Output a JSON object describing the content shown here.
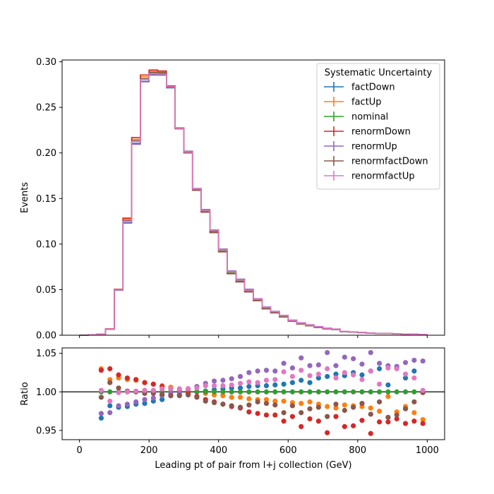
{
  "chart_data": [
    {
      "type": "line",
      "drawstyle": "step",
      "title": "",
      "xlabel": "",
      "ylabel": "Events",
      "xlim": [
        -50,
        1050
      ],
      "ylim": [
        0.0,
        0.302
      ],
      "xticks": [
        0,
        200,
        400,
        600,
        800,
        1000
      ],
      "yticks": [
        0.0,
        0.05,
        0.1,
        0.15,
        0.2,
        0.25,
        0.3
      ],
      "ytick_labels": [
        "0.00",
        "0.05",
        "0.10",
        "0.15",
        "0.20",
        "0.25",
        "0.30"
      ],
      "grid": false,
      "legend": {
        "title": "Systematic Uncertainty",
        "position": "top-right",
        "entries": [
          "factDown",
          "factUp",
          "nominal",
          "renormDown",
          "renormUp",
          "renormfactDown",
          "renormfactUp"
        ]
      },
      "bin_edges": [
        0,
        25,
        50,
        75,
        100,
        125,
        150,
        175,
        200,
        225,
        250,
        275,
        300,
        325,
        350,
        375,
        400,
        425,
        450,
        475,
        500,
        525,
        550,
        575,
        600,
        625,
        650,
        675,
        700,
        725,
        750,
        775,
        800,
        825,
        850,
        875,
        900,
        925,
        950,
        975,
        1000
      ],
      "series": [
        {
          "name": "factDown",
          "color": "#1f77b4",
          "values": [
            0.0,
            0.0005,
            0.001,
            0.0065,
            0.0495,
            0.1235,
            0.2105,
            0.2785,
            0.2855,
            0.2855,
            0.2715,
            0.2265,
            0.2005,
            0.16,
            0.1365,
            0.114,
            0.093,
            0.069,
            0.06,
            0.049,
            0.039,
            0.03,
            0.0255,
            0.021,
            0.016,
            0.013,
            0.011,
            0.009,
            0.0075,
            0.0065,
            0.004,
            0.0035,
            0.003,
            0.0025,
            0.002,
            0.002,
            0.0015,
            0.0012,
            0.001,
            0.0008
          ]
        },
        {
          "name": "factUp",
          "color": "#ff7f0e",
          "values": [
            0.0,
            0.0005,
            0.001,
            0.007,
            0.0502,
            0.1275,
            0.215,
            0.2835,
            0.2895,
            0.289,
            0.2735,
            0.2275,
            0.201,
            0.16,
            0.136,
            0.1135,
            0.0925,
            0.0685,
            0.0595,
            0.0485,
            0.0385,
            0.0295,
            0.0252,
            0.0207,
            0.0158,
            0.0128,
            0.0108,
            0.0088,
            0.0073,
            0.0064,
            0.0039,
            0.0034,
            0.0029,
            0.0024,
            0.0019,
            0.0019,
            0.0015,
            0.0012,
            0.001,
            0.0008
          ]
        },
        {
          "name": "nominal",
          "color": "#2ca02c",
          "values": [
            0.0,
            0.0005,
            0.001,
            0.0068,
            0.05,
            0.1255,
            0.213,
            0.281,
            0.288,
            0.2875,
            0.2725,
            0.227,
            0.201,
            0.16,
            0.1365,
            0.114,
            0.093,
            0.069,
            0.06,
            0.049,
            0.039,
            0.03,
            0.0255,
            0.021,
            0.016,
            0.013,
            0.011,
            0.009,
            0.0075,
            0.0065,
            0.004,
            0.0035,
            0.003,
            0.0025,
            0.002,
            0.002,
            0.0015,
            0.0012,
            0.001,
            0.0008
          ]
        },
        {
          "name": "renormDown",
          "color": "#d62728",
          "values": [
            0.0,
            0.0005,
            0.001,
            0.007,
            0.0505,
            0.1285,
            0.217,
            0.2855,
            0.291,
            0.29,
            0.2735,
            0.227,
            0.2005,
            0.159,
            0.135,
            0.1125,
            0.0915,
            0.0675,
            0.0585,
            0.0475,
            0.038,
            0.029,
            0.0245,
            0.02,
            0.0153,
            0.0123,
            0.0104,
            0.0085,
            0.007,
            0.0062,
            0.0038,
            0.0033,
            0.0028,
            0.0023,
            0.0019,
            0.0019,
            0.0014,
            0.0011,
            0.0009,
            0.0008
          ]
        },
        {
          "name": "renormUp",
          "color": "#9467bd",
          "values": [
            0.0,
            0.0005,
            0.001,
            0.0066,
            0.0495,
            0.123,
            0.2095,
            0.278,
            0.286,
            0.2865,
            0.2725,
            0.2275,
            0.202,
            0.161,
            0.138,
            0.1155,
            0.0945,
            0.0705,
            0.0615,
            0.0505,
            0.04,
            0.031,
            0.0262,
            0.0217,
            0.0166,
            0.0136,
            0.0115,
            0.0094,
            0.0078,
            0.0068,
            0.0042,
            0.0037,
            0.0032,
            0.0026,
            0.0021,
            0.0021,
            0.0016,
            0.0013,
            0.0011,
            0.0009
          ]
        },
        {
          "name": "renormfactDown",
          "color": "#8c564b",
          "values": [
            0.0,
            0.0005,
            0.001,
            0.0067,
            0.05,
            0.126,
            0.2135,
            0.2815,
            0.2885,
            0.288,
            0.272,
            0.2265,
            0.2,
            0.159,
            0.135,
            0.1125,
            0.0915,
            0.0675,
            0.0585,
            0.0475,
            0.038,
            0.029,
            0.0245,
            0.02,
            0.0153,
            0.0123,
            0.0104,
            0.0085,
            0.007,
            0.0062,
            0.0038,
            0.0033,
            0.0028,
            0.0023,
            0.0019,
            0.0019,
            0.0014,
            0.0011,
            0.0009,
            0.0008
          ]
        },
        {
          "name": "renormfactUp",
          "color": "#e377c2",
          "values": [
            0.0,
            0.0005,
            0.001,
            0.0068,
            0.05,
            0.125,
            0.2125,
            0.2805,
            0.287,
            0.2865,
            0.2725,
            0.227,
            0.201,
            0.1605,
            0.137,
            0.115,
            0.0935,
            0.0695,
            0.0605,
            0.0495,
            0.0395,
            0.0305,
            0.0258,
            0.0213,
            0.0162,
            0.0132,
            0.0112,
            0.0091,
            0.0076,
            0.0066,
            0.0041,
            0.0036,
            0.0031,
            0.0025,
            0.002,
            0.002,
            0.0015,
            0.0012,
            0.001,
            0.0008
          ]
        }
      ]
    },
    {
      "type": "scatter",
      "title": "",
      "xlabel": "Leading pt of pair from l+j collection (GeV)",
      "ylabel": "Ratio",
      "xlim": [
        -50,
        1050
      ],
      "ylim": [
        0.938,
        1.057
      ],
      "xticks": [
        0,
        200,
        400,
        600,
        800,
        1000
      ],
      "yticks": [
        0.95,
        1.0,
        1.05
      ],
      "ytick_labels": [
        "0.95",
        "1.00",
        "1.05"
      ],
      "reference_line": 1.0,
      "grid": false,
      "x": [
        62.5,
        87.5,
        112.5,
        137.5,
        162.5,
        187.5,
        212.5,
        237.5,
        262.5,
        287.5,
        312.5,
        337.5,
        362.5,
        387.5,
        412.5,
        437.5,
        462.5,
        487.5,
        512.5,
        537.5,
        562.5,
        587.5,
        612.5,
        637.5,
        662.5,
        687.5,
        712.5,
        737.5,
        762.5,
        787.5,
        812.5,
        837.5,
        862.5,
        887.5,
        912.5,
        937.5,
        962.5,
        987.5
      ],
      "series": [
        {
          "name": "factDown",
          "color": "#1f77b4",
          "values": [
            0.966,
            0.982,
            0.98,
            0.981,
            0.984,
            0.985,
            0.988,
            0.99,
            0.995,
            0.996,
            0.998,
            1.0,
            1.001,
            1.003,
            1.004,
            1.005,
            1.005,
            1.007,
            1.008,
            1.008,
            1.009,
            1.01,
            1.012,
            1.015,
            1.012,
            1.018,
            1.02,
            1.023,
            1.021,
            1.025,
            1.022,
            1.027,
            1.03,
            1.009,
            1.031,
            1.018,
            1.027,
            1.0
          ]
        },
        {
          "name": "factUp",
          "color": "#ff7f0e",
          "values": [
            1.03,
            1.016,
            1.018,
            1.016,
            1.015,
            1.012,
            1.01,
            1.008,
            1.006,
            1.003,
            1.002,
            1.0,
            0.998,
            0.996,
            0.995,
            0.993,
            0.993,
            0.991,
            0.99,
            0.99,
            0.988,
            0.988,
            0.986,
            0.985,
            0.987,
            0.984,
            0.981,
            0.979,
            0.983,
            0.982,
            0.981,
            0.979,
            0.975,
            0.994,
            0.974,
            0.981,
            0.973,
            0.964
          ]
        },
        {
          "name": "nominal",
          "color": "#2ca02c",
          "values": [
            1.0,
            1.0,
            1.0,
            1.0,
            1.0,
            1.0,
            1.0,
            1.0,
            1.0,
            1.0,
            1.0,
            1.0,
            1.0,
            1.0,
            1.0,
            1.0,
            1.0,
            1.0,
            1.0,
            1.0,
            1.0,
            1.0,
            1.0,
            1.0,
            1.0,
            1.0,
            1.0,
            1.0,
            1.0,
            1.0,
            1.0,
            1.0,
            1.0,
            1.0,
            1.0,
            1.0,
            1.0,
            1.0
          ]
        },
        {
          "name": "renormDown",
          "color": "#d62728",
          "values": [
            1.028,
            1.03,
            1.022,
            1.018,
            1.016,
            1.012,
            1.01,
            1.007,
            1.004,
            1.0,
            0.998,
            0.994,
            0.99,
            0.987,
            0.984,
            0.981,
            0.979,
            0.974,
            0.972,
            0.97,
            0.97,
            0.962,
            0.968,
            0.955,
            0.965,
            0.962,
            0.947,
            0.968,
            0.955,
            0.956,
            0.963,
            0.946,
            0.961,
            0.961,
            0.965,
            0.959,
            0.962,
            0.959
          ]
        },
        {
          "name": "renormUp",
          "color": "#9467bd",
          "values": [
            0.972,
            0.973,
            0.982,
            0.984,
            0.987,
            0.99,
            0.992,
            0.995,
            0.998,
            1.001,
            1.004,
            1.007,
            1.011,
            1.014,
            1.015,
            1.017,
            1.02,
            1.025,
            1.027,
            1.028,
            1.027,
            1.037,
            1.031,
            1.044,
            1.034,
            1.035,
            1.051,
            1.034,
            1.045,
            1.043,
            1.036,
            1.051,
            1.037,
            1.034,
            1.033,
            1.038,
            1.041,
            1.04
          ]
        },
        {
          "name": "renormfactDown",
          "color": "#8c564b",
          "values": [
            0.993,
            1.012,
            1.005,
            1.001,
            1.0,
            0.998,
            0.998,
            0.997,
            0.995,
            0.995,
            0.996,
            0.993,
            0.988,
            0.986,
            0.984,
            0.982,
            0.98,
            0.983,
            0.987,
            0.985,
            0.983,
            0.973,
            0.982,
            0.973,
            0.978,
            0.98,
            0.968,
            0.984,
            0.976,
            0.98,
            0.985,
            0.971,
            0.987,
            0.967,
            0.97,
            0.978,
            0.987,
            0.999
          ]
        },
        {
          "name": "renormfactUp",
          "color": "#e377c2",
          "values": [
            1.002,
            0.988,
            0.999,
            1.0,
            1.001,
            1.002,
            1.002,
            1.004,
            1.004,
            1.004,
            1.004,
            1.005,
            1.008,
            1.008,
            1.008,
            1.009,
            1.011,
            1.013,
            1.012,
            1.015,
            1.016,
            1.026,
            1.02,
            1.028,
            1.021,
            1.023,
            1.03,
            1.018,
            1.025,
            1.022,
            1.016,
            1.027,
            1.01,
            1.031,
            1.03,
            1.023,
            1.018,
            1.002
          ]
        }
      ]
    }
  ]
}
